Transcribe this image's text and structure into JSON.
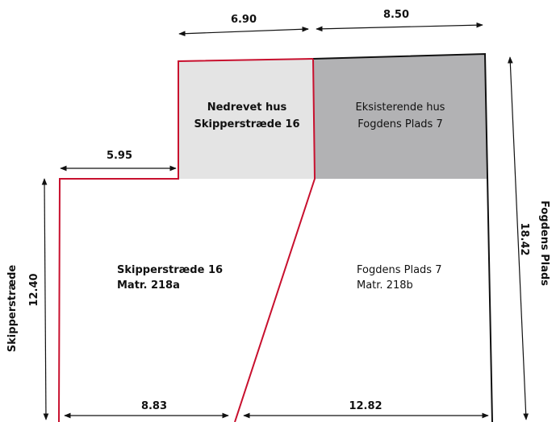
{
  "colors": {
    "demolished_fill": "#e4e4e4",
    "existing_fill": "#b2b2b4",
    "boundary_red": "#c8102e",
    "line_black": "#111111"
  },
  "buildings": {
    "demolished": {
      "line1": "Nedrevet hus",
      "line2": "Skipperstræde 16"
    },
    "existing": {
      "line1": "Eksisterende hus",
      "line2": "Fogdens Plads 7"
    }
  },
  "plots": {
    "left": {
      "line1": "Skipperstræde 16",
      "line2": "Matr. 218a"
    },
    "right": {
      "line1": "Fogdens Plads 7",
      "line2": "Matr. 218b"
    }
  },
  "streets": {
    "left": "Skipperstræde",
    "right": "Fogdens Plads"
  },
  "dimensions": {
    "top_left": "6.90",
    "top_right": "8.50",
    "step": "5.95",
    "left_side": "12.40",
    "right_side": "18.42",
    "bottom_left": "8.83",
    "bottom_right": "12.82"
  }
}
